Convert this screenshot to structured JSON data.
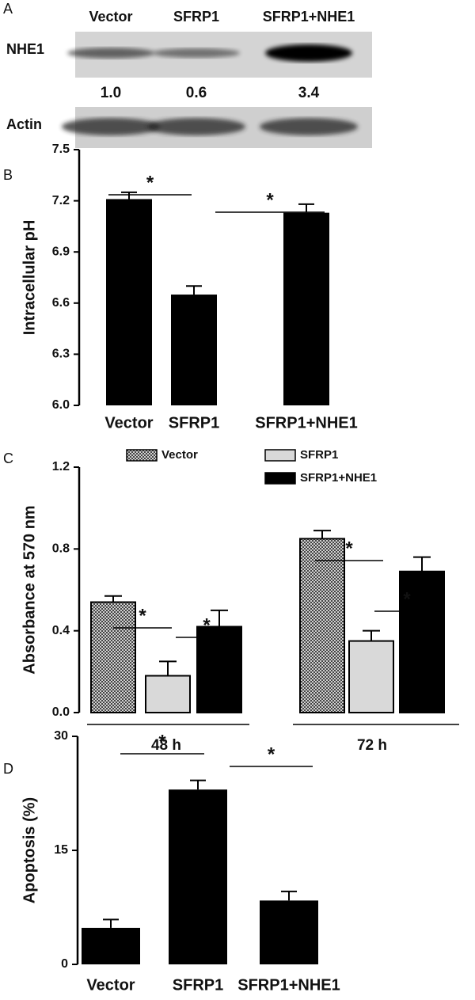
{
  "chart_data": [
    {
      "type": "blot",
      "panel": "A",
      "categories": [
        "Vector",
        "SFRP1",
        "SFRP1+NHE1"
      ],
      "rows": [
        "NHE1",
        "Actin"
      ],
      "values": [
        1.0,
        0.6,
        3.4
      ],
      "value_labels": [
        "1.0",
        "0.6",
        "3.4"
      ]
    },
    {
      "type": "bar",
      "panel": "B",
      "y_label": "Intracellular pH",
      "categories": [
        "Vector",
        "SFRP1",
        "SFRP1+NHE1"
      ],
      "values": [
        7.21,
        6.65,
        7.13
      ],
      "errors": [
        0.04,
        0.05,
        0.05
      ],
      "color": "#000000",
      "ylim": [
        6.0,
        7.5
      ],
      "yticks": [
        {
          "value": 6.0,
          "label": "6.0"
        },
        6.3,
        6.6,
        6.9,
        7.2,
        7.5
      ],
      "annotations": [
        "*",
        "*"
      ]
    },
    {
      "type": "grouped_bar",
      "panel": "C",
      "y_label": "Absorbance at 570 nm",
      "categories": [
        "48 h",
        "72 h"
      ],
      "series": [
        {
          "name": "Vector",
          "color": "#8c8c8c",
          "hatch": true,
          "values": [
            0.54,
            0.85
          ],
          "errors": [
            0.03,
            0.04
          ]
        },
        {
          "name": "SFRP1",
          "color": "#d9d9d9",
          "values": [
            0.18,
            0.35
          ],
          "errors": [
            0.07,
            0.05
          ]
        },
        {
          "name": "SFRP1+NHE1",
          "color": "#000000",
          "values": [
            0.42,
            0.69
          ],
          "errors": [
            0.08,
            0.07
          ]
        }
      ],
      "ylim": [
        0,
        1.2
      ],
      "yticks": [
        {
          "value": 0,
          "label": "0.0"
        },
        0.4,
        0.8,
        1.2
      ],
      "annotations": [
        "*",
        "*",
        "*",
        "*"
      ]
    },
    {
      "type": "bar",
      "panel": "D",
      "y_label": "Apoptosis (%)",
      "categories": [
        "Vector",
        "SFRP1",
        "SFRP1+NHE1"
      ],
      "values": [
        4.8,
        23,
        8.4
      ],
      "errors": [
        1.1,
        1.2,
        1.2
      ],
      "color": "#000000",
      "ylim": [
        0,
        30
      ],
      "yticks": [
        0,
        15,
        30
      ],
      "annotations": [
        "*",
        "*"
      ]
    }
  ]
}
